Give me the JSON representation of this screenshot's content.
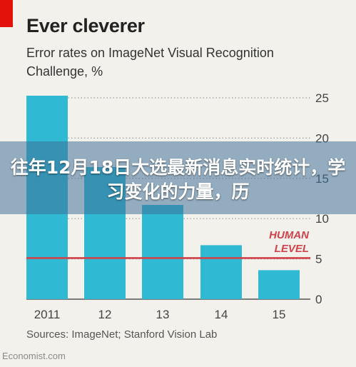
{
  "header": {
    "title": "Ever cleverer",
    "subtitle": "Error rates on ImageNet Visual Recognition Challenge, %"
  },
  "overlay": {
    "text": "往年12月18日大选最新消息实时统计，学习变化的力量，历"
  },
  "footer": {
    "sources": "Sources: ImageNet; Stanford Vision Lab",
    "watermark": "Economist.com"
  },
  "colors": {
    "bar": "#30b9d2",
    "reference_line": "#d0424a",
    "brand_red": "#e3120b"
  },
  "chart_data": {
    "type": "bar",
    "title": "Ever cleverer",
    "subtitle": "Error rates on ImageNet Visual Recognition Challenge, %",
    "categories": [
      "2011",
      "12",
      "13",
      "14",
      "15"
    ],
    "values": [
      25.8,
      16.4,
      11.7,
      6.7,
      3.6
    ],
    "ylim": [
      0,
      25
    ],
    "yticks": [
      0,
      5,
      10,
      15,
      20,
      25
    ],
    "y_axis_side": "right",
    "grid": "dotted horizontal",
    "reference_line": {
      "value": 5.1,
      "label_line1": "HUMAN",
      "label_line2": "LEVEL"
    }
  }
}
